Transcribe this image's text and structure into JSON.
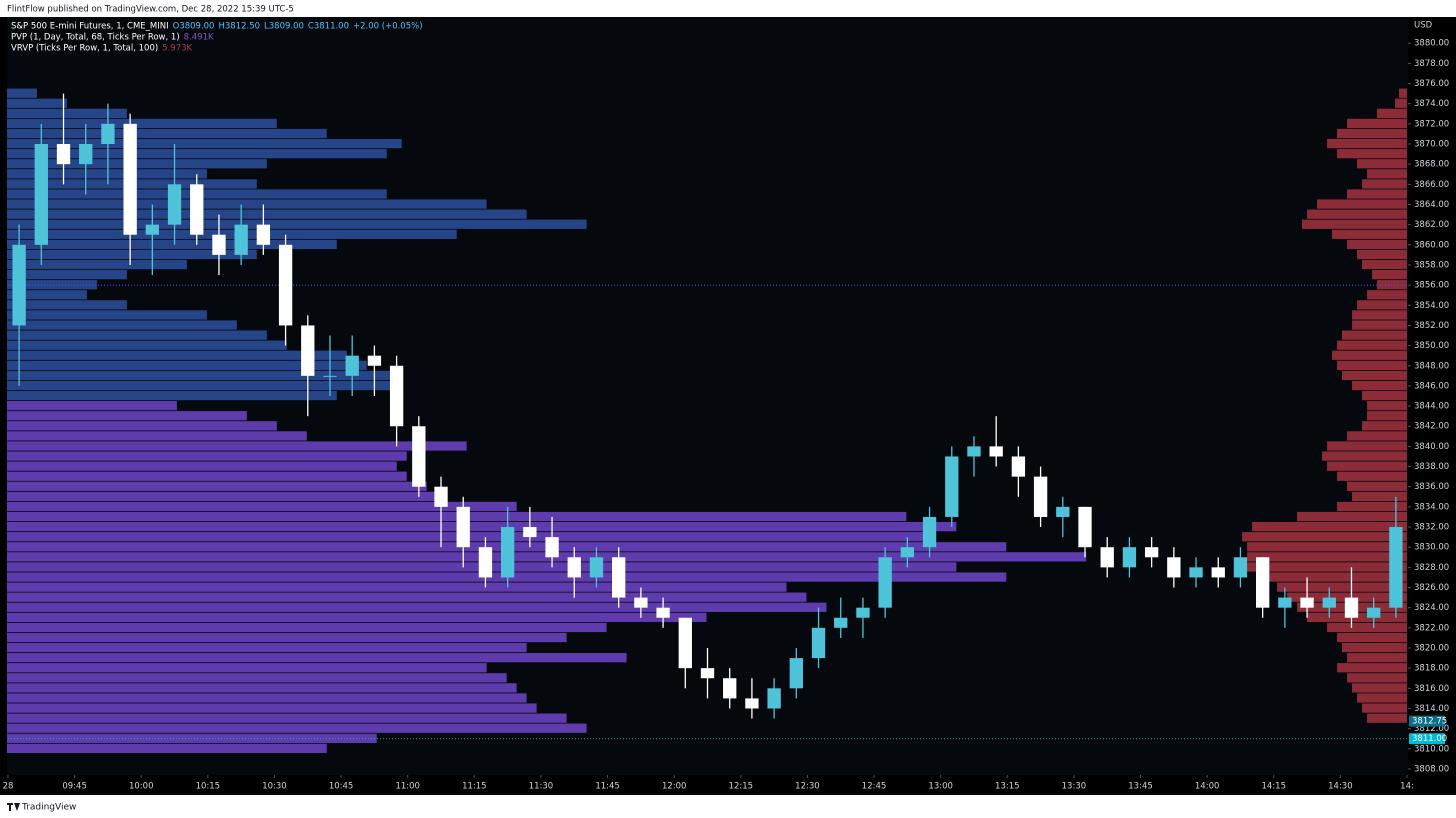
{
  "chart_data": {
    "type": "candlestick",
    "publisher": "FlintFlow published on TradingView.com, Dec 28, 2022 15:39 UTC-5",
    "title": "S&P 500 E-mini Futures, 1, CME_MINI",
    "legend_fields": [
      "O3809.00",
      "H3812.50",
      "L3809.00",
      "C3811.00",
      "+2.00 (+0.05%)"
    ],
    "indicators": [
      {
        "name": "PVP (1, Day, Total, 68, Ticks Per Row, 1)",
        "value_label": "8.491K",
        "color": "#7e57c2"
      },
      {
        "name": "VRVP (Ticks Per Row, 1, Total, 100)",
        "value_label": "5.973K",
        "color": "#b03a4a"
      }
    ],
    "y_axis_label": "USD",
    "footer": "TradingView",
    "up_color": "#4fc3d9",
    "down_color": "#ffffff",
    "ylim": [
      3807.4,
      3882.6
    ],
    "yticks": [
      {
        "value": 3808,
        "label": "3808.00"
      },
      {
        "value": 3810,
        "label": "3810.00"
      },
      {
        "value": 3812,
        "label": "3812.00"
      },
      {
        "value": 3814,
        "label": "3814.00"
      },
      {
        "value": 3816,
        "label": "3816.00"
      },
      {
        "value": 3818,
        "label": "3818.00"
      },
      {
        "value": 3820,
        "label": "3820.00"
      },
      {
        "value": 3822,
        "label": "3822.00"
      },
      {
        "value": 3824,
        "label": "3824.00"
      },
      {
        "value": 3826,
        "label": "3826.00"
      },
      {
        "value": 3828,
        "label": "3828.00"
      },
      {
        "value": 3830,
        "label": "3830.00"
      },
      {
        "value": 3832,
        "label": "3832.00"
      },
      {
        "value": 3834,
        "label": "3834.00"
      },
      {
        "value": 3836,
        "label": "3836.00"
      },
      {
        "value": 3838,
        "label": "3838.00"
      },
      {
        "value": 3840,
        "label": "3840.00"
      },
      {
        "value": 3842,
        "label": "3842.00"
      },
      {
        "value": 3844,
        "label": "3844.00"
      },
      {
        "value": 3846,
        "label": "3846.00"
      },
      {
        "value": 3848,
        "label": "3848.00"
      },
      {
        "value": 3850,
        "label": "3850.00"
      },
      {
        "value": 3852,
        "label": "3852.00"
      },
      {
        "value": 3854,
        "label": "3854.00"
      },
      {
        "value": 3856,
        "label": "3856.00"
      },
      {
        "value": 3858,
        "label": "3858.00"
      },
      {
        "value": 3860,
        "label": "3860.00"
      },
      {
        "value": 3862,
        "label": "3862.00"
      },
      {
        "value": 3864,
        "label": "3864.00"
      },
      {
        "value": 3866,
        "label": "3866.00"
      },
      {
        "value": 3868,
        "label": "3868.00"
      },
      {
        "value": 3870,
        "label": "3870.00"
      },
      {
        "value": 3872,
        "label": "3872.00"
      },
      {
        "value": 3874,
        "label": "3874.00"
      },
      {
        "value": 3876,
        "label": "3876.00"
      },
      {
        "value": 3878,
        "label": "3878.00"
      },
      {
        "value": 3880,
        "label": "3880.00"
      }
    ],
    "xlim": [
      "09:30",
      "14:45"
    ],
    "xticks": [
      {
        "value": "09:30",
        "label": "28"
      },
      "09:45",
      "10:00",
      "10:15",
      "10:30",
      "10:45",
      "11:00",
      "11:15",
      "11:30",
      "11:45",
      "12:00",
      "12:15",
      "12:30",
      "12:45",
      "13:00",
      "13:15",
      "13:30",
      "13:45",
      "14:00",
      "14:15",
      "14:30",
      {
        "value": "14:45",
        "label": "14:"
      }
    ],
    "x": [
      "09:30",
      "09:35",
      "09:40",
      "09:45",
      "09:50",
      "09:55",
      "10:00",
      "10:05",
      "10:10",
      "10:15",
      "10:20",
      "10:25",
      "10:30",
      "10:35",
      "10:40",
      "10:45",
      "10:50",
      "10:55",
      "11:00",
      "11:05",
      "11:10",
      "11:15",
      "11:20",
      "11:25",
      "11:30",
      "11:35",
      "11:40",
      "11:45",
      "11:50",
      "11:55",
      "12:00",
      "12:05",
      "12:10",
      "12:15",
      "12:20",
      "12:25",
      "12:30",
      "12:35",
      "12:40",
      "12:45",
      "12:50",
      "12:55",
      "13:00",
      "13:05",
      "13:10",
      "13:15",
      "13:20",
      "13:25",
      "13:30",
      "13:35",
      "13:40",
      "13:45",
      "13:50",
      "13:55",
      "14:00",
      "14:05",
      "14:10",
      "14:15",
      "14:20",
      "14:25",
      "14:30",
      "14:35",
      "14:40"
    ],
    "open": [
      3852,
      3860,
      3870,
      3868,
      3870,
      3872,
      3861,
      3862,
      3866,
      3861,
      3859,
      3862,
      3860,
      3852,
      3847,
      3847,
      3849,
      3848,
      3842,
      3836,
      3834,
      3830,
      3827,
      3832,
      3831,
      3829,
      3827,
      3829,
      3825,
      3824,
      3823,
      3818,
      3817,
      3815,
      3814,
      3816,
      3819,
      3822,
      3823,
      3824,
      3829,
      3830,
      3833,
      3839,
      3840,
      3839,
      3837,
      3833,
      3834,
      3830,
      3828,
      3830,
      3829,
      3827,
      3828,
      3827,
      3829,
      3824,
      3825,
      3824,
      3825,
      3823,
      3824
    ],
    "high": [
      3862,
      3872,
      3875,
      3872,
      3874,
      3873,
      3864,
      3870,
      3867,
      3863,
      3864,
      3864,
      3861,
      3853,
      3851,
      3851,
      3850,
      3849,
      3843,
      3837,
      3835,
      3831,
      3834,
      3834,
      3833,
      3830,
      3830,
      3830,
      3826,
      3825,
      3823,
      3820,
      3818,
      3817,
      3817,
      3820,
      3824,
      3825,
      3825,
      3830,
      3831,
      3834,
      3840,
      3841,
      3843,
      3840,
      3838,
      3835,
      3834,
      3831,
      3831,
      3831,
      3830,
      3829,
      3829,
      3830,
      3829,
      3826,
      3827,
      3826,
      3828,
      3825,
      3835
    ],
    "low": [
      3846,
      3858,
      3866,
      3865,
      3866,
      3858,
      3857,
      3860,
      3860,
      3857,
      3858,
      3859,
      3850,
      3843,
      3845,
      3845,
      3845,
      3840,
      3835,
      3830,
      3828,
      3826,
      3826,
      3830,
      3828,
      3825,
      3826,
      3824,
      3823,
      3822,
      3816,
      3815,
      3814,
      3813,
      3813,
      3815,
      3818,
      3821,
      3821,
      3823,
      3828,
      3829,
      3832,
      3837,
      3838,
      3835,
      3832,
      3831,
      3829,
      3827,
      3827,
      3828,
      3826,
      3826,
      3826,
      3826,
      3823,
      3822,
      3823,
      3823,
      3822,
      3822,
      3823
    ],
    "close": [
      3860,
      3870,
      3868,
      3870,
      3872,
      3861,
      3862,
      3866,
      3861,
      3859,
      3862,
      3860,
      3852,
      3847,
      3847,
      3849,
      3848,
      3842,
      3836,
      3834,
      3830,
      3827,
      3832,
      3831,
      3829,
      3827,
      3829,
      3825,
      3824,
      3823,
      3818,
      3817,
      3815,
      3814,
      3816,
      3819,
      3822,
      3823,
      3824,
      3829,
      3830,
      3833,
      3839,
      3840,
      3839,
      3837,
      3833,
      3834,
      3830,
      3828,
      3830,
      3829,
      3827,
      3828,
      3827,
      3829,
      3824,
      3825,
      3824,
      3825,
      3823,
      3824,
      3832
    ],
    "profiles": [
      {
        "side": "left",
        "color": "#2d4f9e",
        "prices": [
          3875,
          3874,
          3873,
          3872,
          3871,
          3870,
          3869,
          3868,
          3867,
          3866,
          3865,
          3864,
          3863,
          3862,
          3861,
          3860,
          3859,
          3858,
          3857,
          3856,
          3855,
          3854,
          3853,
          3852,
          3851,
          3850,
          3849,
          3848,
          3847,
          3846,
          3845
        ],
        "values": [
          30,
          60,
          120,
          270,
          320,
          395,
          380,
          260,
          200,
          250,
          380,
          480,
          520,
          580,
          450,
          330,
          250,
          180,
          120,
          90,
          80,
          120,
          200,
          230,
          260,
          280,
          340,
          360,
          385,
          390,
          330
        ]
      },
      {
        "side": "left",
        "color": "#6f45c9",
        "prices": [
          3844,
          3843,
          3842,
          3841,
          3840,
          3839,
          3838,
          3837,
          3836,
          3835,
          3834,
          3833,
          3832,
          3831,
          3830,
          3829,
          3828,
          3827,
          3826,
          3825,
          3824,
          3823,
          3822,
          3821,
          3820,
          3819,
          3818,
          3817,
          3816,
          3815,
          3814,
          3813,
          3812,
          3811,
          3810
        ],
        "values": [
          170,
          240,
          270,
          300,
          460,
          400,
          390,
          400,
          420,
          430,
          510,
          900,
          950,
          920,
          1000,
          1080,
          950,
          1000,
          780,
          800,
          820,
          700,
          600,
          560,
          520,
          620,
          480,
          500,
          510,
          520,
          530,
          560,
          580,
          370,
          320
        ]
      },
      {
        "side": "right",
        "color": "#a3333f",
        "prices": [
          3875,
          3874,
          3873,
          3872,
          3871,
          3870,
          3869,
          3868,
          3867,
          3866,
          3865,
          3864,
          3863,
          3862,
          3861,
          3860,
          3859,
          3858,
          3857,
          3856,
          3855,
          3854,
          3853,
          3852,
          3851,
          3850,
          3849,
          3848,
          3847,
          3846,
          3845,
          3844,
          3843,
          3842,
          3841,
          3840,
          3839,
          3838,
          3837,
          3836,
          3835,
          3834,
          3833,
          3832,
          3831,
          3830,
          3829,
          3828,
          3827,
          3826,
          3825,
          3824,
          3823,
          3822,
          3821,
          3820,
          3819,
          3818,
          3817,
          3816,
          3815,
          3814,
          3813
        ],
        "values": [
          8,
          12,
          30,
          60,
          70,
          80,
          70,
          50,
          40,
          45,
          60,
          90,
          100,
          105,
          75,
          60,
          50,
          45,
          35,
          30,
          40,
          50,
          55,
          55,
          65,
          70,
          75,
          70,
          65,
          55,
          45,
          40,
          40,
          45,
          60,
          80,
          85,
          80,
          70,
          60,
          55,
          70,
          110,
          155,
          165,
          160,
          160,
          165,
          140,
          130,
          120,
          110,
          100,
          80,
          70,
          65,
          60,
          70,
          60,
          55,
          50,
          45,
          40
        ]
      }
    ],
    "reference_lines": [
      {
        "value": 3856,
        "color": "#3d5afe"
      },
      {
        "value": 3811,
        "color": "#26a69a"
      }
    ],
    "price_labels": [
      {
        "value": 3812.75,
        "label": "3812.75",
        "color": "#0b6f8a"
      },
      {
        "value": 3811.0,
        "label": "3811.00",
        "color": "#00bcd4"
      }
    ]
  }
}
